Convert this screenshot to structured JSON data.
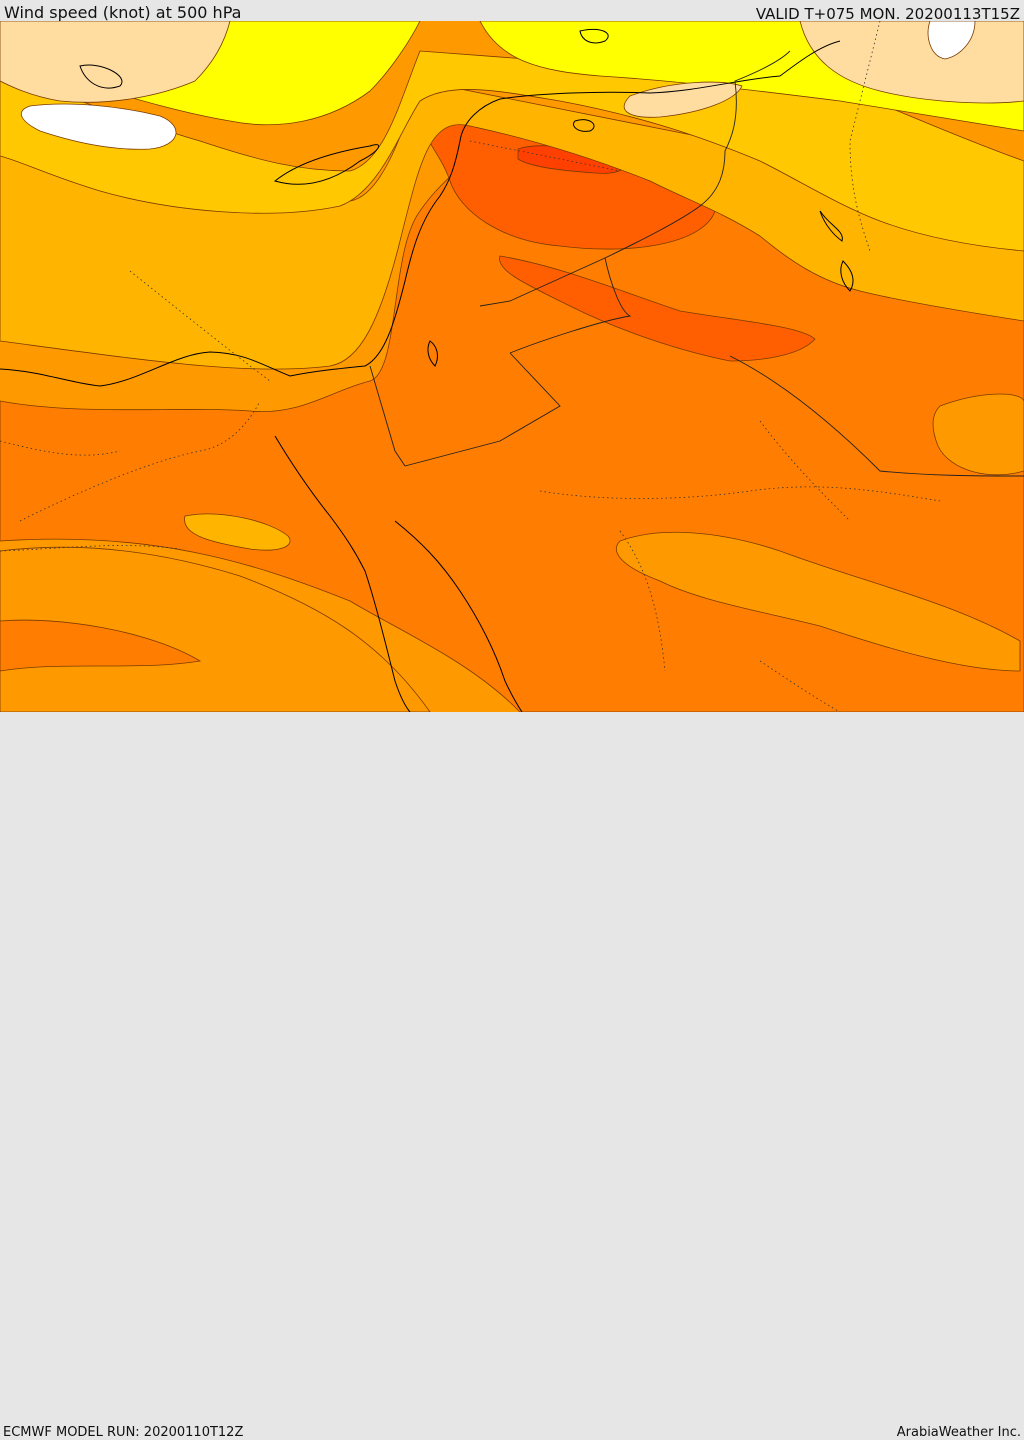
{
  "header": {
    "title": "Wind speed (knot) at 500 hPa",
    "valid": "VALID T+075 MON. 20200113T15Z"
  },
  "footer": {
    "model_run": "ECMWF MODEL RUN: 20200110T12Z",
    "credit": "ArabiaWeather Inc."
  },
  "colors": {
    "white": "#ffffff",
    "peach": "#ffdca0",
    "yellow": "#ffff00",
    "light_orange": "#ffc800",
    "gold": "#ffb400",
    "orange": "#ff9900",
    "dark_orange": "#ff7d00",
    "red_orange": "#ff5f00",
    "red": "#ff4000",
    "coast": "#000000",
    "border": "#222222"
  }
}
